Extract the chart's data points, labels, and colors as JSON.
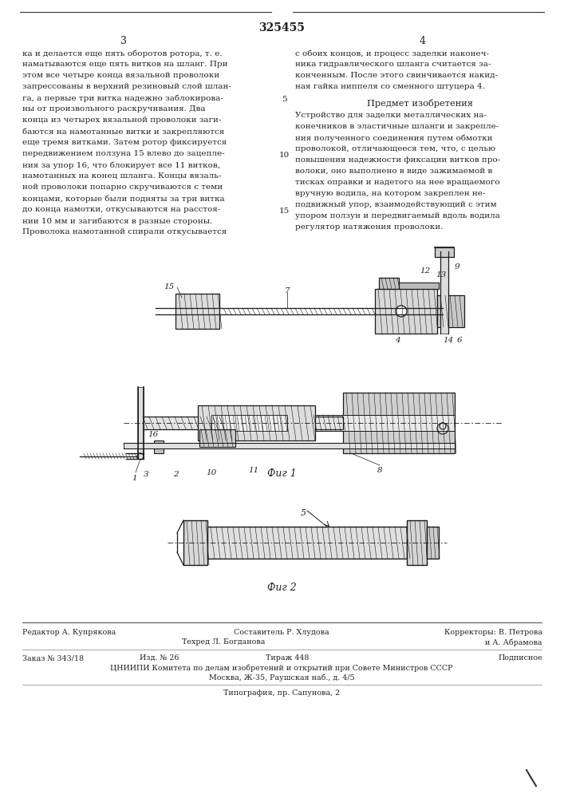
{
  "patent_number": "325455",
  "page_left_number": "3",
  "page_right_number": "4",
  "left_column_text": [
    "ка и делается еще пять оборотов ротора, т. е.",
    "наматываются еще пять витков на шланг. При",
    "этом все четыре конца вязальной проволоки",
    "запрессованы в верхний резиновый слой шлан-",
    "га, а первые три витка надежно заблокирова-",
    "ны от произвольного раскручивания. Два",
    "конца из четырех вязальной проволоки заги-",
    "баются на намотанные витки и закрепляются",
    "еще тремя витками. Затем ротор фиксируется",
    "передвижением ползуна 15 влево до зацепле-",
    "ния за упор 16, что блокирует все 11 витков,",
    "намотанных на конец шланга. Концы вязаль-",
    "ной проволоки попарно скручиваются с теми",
    "концами, которые были подняты за три витка",
    "до конца намотки, откусываются на расстоя-",
    "нии 10 мм и загибаются в разные стороны.",
    "Проволока намотанной спирали откусывается"
  ],
  "right_column_text_before_heading": [
    "с обоих концов, и процесс заделки наконеч-",
    "ника гидравлического шланга считается за-",
    "конченным. После этого свинчивается накид-",
    "ная гайка ниппеля со сменного штуцера 4."
  ],
  "right_column_heading": "Предмет изобретения",
  "right_column_text_after_heading": [
    "Устройство для заделки металлических на-",
    "конечников в эластичные шланги и закрепле-",
    "ния полученного соединения путем обмотки",
    "проволокой, отличающееся тем, что, с целью",
    "повышения надежности фиксации витков про-",
    "волоки, оно выполнено в виде зажимаемой в",
    "тисках оправки и надетого на нее вращаемого",
    "вручную водила, на котором закреплен не-",
    "подвижный упор, взаимодействующий с этим",
    "упором ползун и передвигаемый вдоль водила",
    "регулятор натяжения проволоки."
  ],
  "line_num_5": "5",
  "line_num_10": "10",
  "line_num_15": "15",
  "fig1_label": "Фиг 1",
  "fig2_label": "Фиг 2",
  "footer_editor": "Редактор А. Купрякова",
  "footer_composer": "Составитель Р. Хлудова",
  "footer_correctors": "Корректоры: В. Петрова",
  "footer_correctors2": "и А. Абрамова",
  "footer_techred": "Техред Л. Богданова",
  "footer_order": "Заказ № 343/18",
  "footer_issue": "Изд. № 26",
  "footer_copies": "Тираж 448",
  "footer_subscription": "Подписное",
  "footer_org": "ЦНИИПИ Комитета по делам изобретений и открытий при Совете Министров СССР",
  "footer_addr": "Москва, Ж-35, Раушская наб., д. 4/5",
  "footer_print": "Типография, пр. Сапунова, 2",
  "bg_color": "#ffffff",
  "text_color": "#222222"
}
